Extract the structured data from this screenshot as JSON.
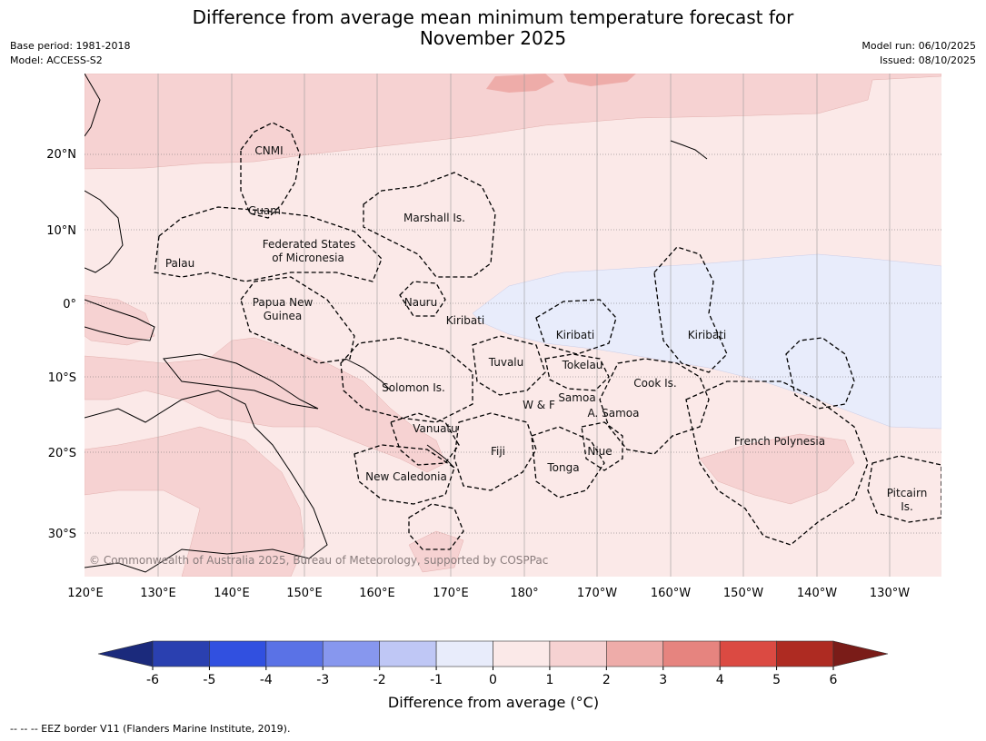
{
  "title_line1": "Difference from average mean minimum temperature forecast for",
  "title_line2": "November 2025",
  "meta": {
    "base_period": "Base period: 1981-2018",
    "model": "Model: ACCESS-S2",
    "model_run": "Model run: 06/10/2025",
    "issued": "Issued: 08/10/2025"
  },
  "lat_labels": [
    "20°N",
    "10°N",
    "0°",
    "10°S",
    "20°S",
    "30°S"
  ],
  "lon_labels": [
    "120°E",
    "130°E",
    "140°E",
    "150°E",
    "160°E",
    "170°E",
    "180°",
    "170°W",
    "160°W",
    "150°W",
    "140°W",
    "130°W"
  ],
  "regions": {
    "cnmi": "CNMI",
    "guam": "Guam",
    "marshall": "Marshall Is.",
    "fsm1": "Federated States",
    "fsm2": "of Micronesia",
    "palau": "Palau",
    "nauru": "Nauru",
    "png1": "Papua New",
    "png2": "Guinea",
    "kiribati_w": "Kiribati",
    "kiribati_c": "Kiribati",
    "kiribati_e": "Kiribati",
    "tuvalu": "Tuvalu",
    "tokelau": "Tokelau",
    "cook": "Cook Is.",
    "solomon": "Solomon Is.",
    "samoa": "Samoa",
    "wf": "W & F",
    "asamoa": "A. Samoa",
    "vanuatu": "Vanuatu",
    "fiji": "Fiji",
    "niue": "Niue",
    "tonga": "Tonga",
    "frpoly": "French Polynesia",
    "newcal": "New Caledonia",
    "pitcairn1": "Pitcairn",
    "pitcairn2": "Is."
  },
  "copyright": "© Commonwealth of Australia 2025, Bureau of Meteorology, supported by COSPPac",
  "colorbar": {
    "ticks": [
      "-6",
      "-5",
      "-4",
      "-3",
      "-2",
      "-1",
      "0",
      "1",
      "2",
      "3",
      "4",
      "5",
      "6"
    ],
    "colors": [
      "#2a40b0",
      "#3150e0",
      "#5a72e6",
      "#8797ee",
      "#bfc7f5",
      "#e8ecfb",
      "#fbe9e8",
      "#f6d2d2",
      "#eeaca9",
      "#e6847f",
      "#db4a42",
      "#ae2b22"
    ],
    "under_color": "#1b2a7c",
    "over_color": "#7a1c18",
    "label": "Difference from average (°C)"
  },
  "footnote": "--  --  -- EEZ border V11 (Flanders Marine Institute, 2019)."
}
